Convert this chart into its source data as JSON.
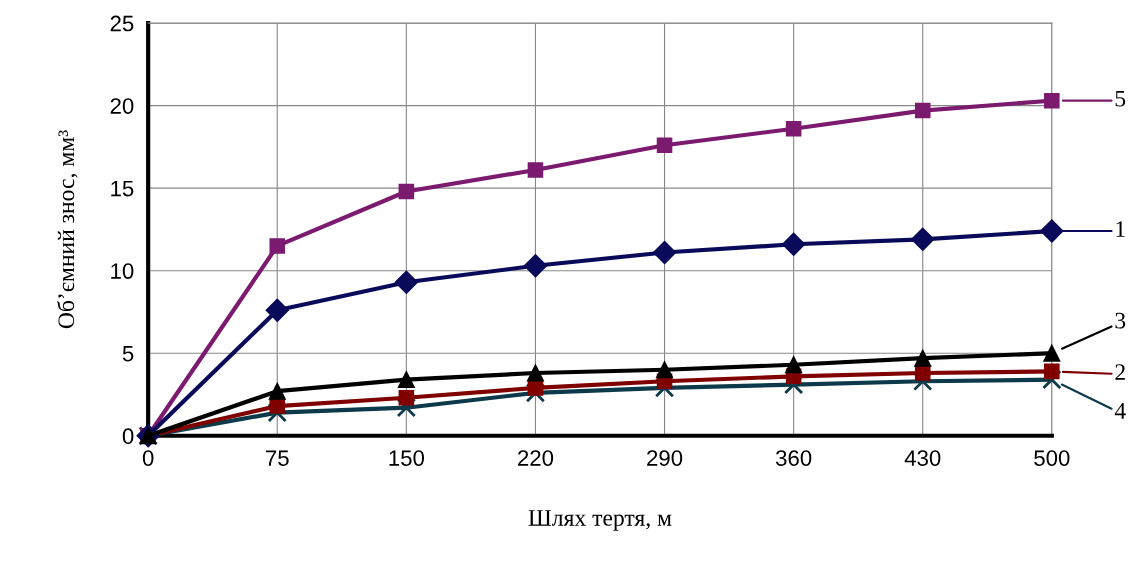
{
  "chart_data": {
    "type": "line",
    "xlabel": "Шлях тертя, м",
    "ylabel": "Об’ємний знос, мм³",
    "categories": [
      "0",
      "75",
      "150",
      "220",
      "290",
      "360",
      "430",
      "500"
    ],
    "series": [
      {
        "name": "1",
        "color": "#0a0a5a",
        "marker": "diamond",
        "values": [
          0,
          7.6,
          9.3,
          10.3,
          11.1,
          11.6,
          11.9,
          12.4
        ]
      },
      {
        "name": "2",
        "color": "#800000",
        "marker": "square",
        "values": [
          0,
          1.8,
          2.3,
          2.9,
          3.3,
          3.6,
          3.8,
          3.9
        ]
      },
      {
        "name": "3",
        "color": "#000000",
        "marker": "triangle",
        "values": [
          0,
          2.7,
          3.4,
          3.8,
          4.0,
          4.3,
          4.7,
          5.0
        ]
      },
      {
        "name": "4",
        "color": "#0d3a4a",
        "marker": "cross",
        "values": [
          0,
          1.4,
          1.7,
          2.6,
          2.9,
          3.1,
          3.3,
          3.4
        ]
      },
      {
        "name": "5",
        "color": "#7b1a6e",
        "marker": "square",
        "values": [
          0,
          11.5,
          14.8,
          16.1,
          17.6,
          18.6,
          19.7,
          20.3
        ]
      }
    ],
    "ylim": [
      0,
      25
    ],
    "yticks": [
      0,
      5,
      10,
      15,
      20,
      25
    ],
    "grid": true,
    "legend": "right"
  }
}
